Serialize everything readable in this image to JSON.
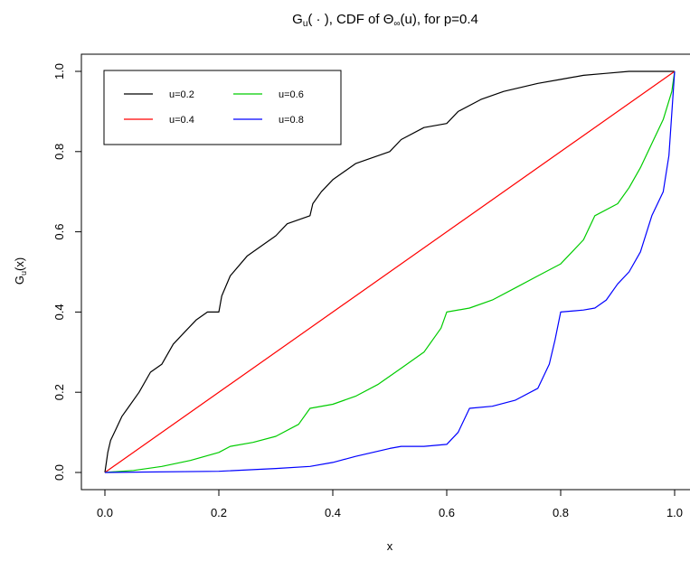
{
  "chart_data": {
    "type": "line",
    "title_parts": {
      "base": "G",
      "sub": "u",
      "rest": "( · ), CDF of Θ",
      "sub2": "∞",
      "tail": "(u), for p=0.4"
    },
    "title": "Gu( · ), CDF of Θ∞(u), for p=0.4",
    "xlabel": "x",
    "ylabel_parts": {
      "base": "G",
      "sub": "u",
      "rest": "(x)"
    },
    "ylabel": "Gu(x)",
    "xlim": [
      0,
      1
    ],
    "ylim": [
      0,
      1
    ],
    "x_ticks": [
      "0.0",
      "0.2",
      "0.4",
      "0.6",
      "0.8",
      "1.0"
    ],
    "y_ticks": [
      "0.0",
      "0.2",
      "0.4",
      "0.6",
      "0.8",
      "1.0"
    ],
    "grid": false,
    "legend_position": "top-left",
    "legend_columns": 2,
    "series": [
      {
        "name": "u=0.2",
        "color": "#000000",
        "points": [
          [
            0,
            0
          ],
          [
            0.005,
            0.05
          ],
          [
            0.01,
            0.08
          ],
          [
            0.02,
            0.11
          ],
          [
            0.03,
            0.14
          ],
          [
            0.04,
            0.16
          ],
          [
            0.06,
            0.2
          ],
          [
            0.08,
            0.25
          ],
          [
            0.1,
            0.27
          ],
          [
            0.12,
            0.32
          ],
          [
            0.14,
            0.35
          ],
          [
            0.16,
            0.38
          ],
          [
            0.18,
            0.4
          ],
          [
            0.2,
            0.4
          ],
          [
            0.205,
            0.44
          ],
          [
            0.22,
            0.49
          ],
          [
            0.25,
            0.54
          ],
          [
            0.28,
            0.57
          ],
          [
            0.3,
            0.59
          ],
          [
            0.32,
            0.62
          ],
          [
            0.36,
            0.64
          ],
          [
            0.365,
            0.67
          ],
          [
            0.38,
            0.7
          ],
          [
            0.4,
            0.73
          ],
          [
            0.44,
            0.77
          ],
          [
            0.5,
            0.8
          ],
          [
            0.52,
            0.83
          ],
          [
            0.56,
            0.86
          ],
          [
            0.6,
            0.87
          ],
          [
            0.62,
            0.9
          ],
          [
            0.66,
            0.93
          ],
          [
            0.7,
            0.95
          ],
          [
            0.76,
            0.97
          ],
          [
            0.8,
            0.98
          ],
          [
            0.84,
            0.99
          ],
          [
            0.88,
            0.995
          ],
          [
            0.92,
            1.0
          ],
          [
            1.0,
            1.0
          ]
        ]
      },
      {
        "name": "u=0.4",
        "color": "#ff0000",
        "points": [
          [
            0,
            0
          ],
          [
            1,
            1
          ]
        ]
      },
      {
        "name": "u=0.6",
        "color": "#00cc00",
        "points": [
          [
            0,
            0
          ],
          [
            0.05,
            0.005
          ],
          [
            0.1,
            0.015
          ],
          [
            0.15,
            0.03
          ],
          [
            0.2,
            0.05
          ],
          [
            0.22,
            0.065
          ],
          [
            0.26,
            0.075
          ],
          [
            0.3,
            0.09
          ],
          [
            0.34,
            0.12
          ],
          [
            0.36,
            0.16
          ],
          [
            0.4,
            0.17
          ],
          [
            0.44,
            0.19
          ],
          [
            0.48,
            0.22
          ],
          [
            0.52,
            0.26
          ],
          [
            0.56,
            0.3
          ],
          [
            0.59,
            0.36
          ],
          [
            0.6,
            0.4
          ],
          [
            0.64,
            0.41
          ],
          [
            0.68,
            0.43
          ],
          [
            0.72,
            0.46
          ],
          [
            0.76,
            0.49
          ],
          [
            0.8,
            0.52
          ],
          [
            0.84,
            0.58
          ],
          [
            0.86,
            0.64
          ],
          [
            0.9,
            0.67
          ],
          [
            0.92,
            0.71
          ],
          [
            0.94,
            0.76
          ],
          [
            0.96,
            0.82
          ],
          [
            0.98,
            0.88
          ],
          [
            0.995,
            0.95
          ],
          [
            1.0,
            1.0
          ]
        ]
      },
      {
        "name": "u=0.8",
        "color": "#0000ff",
        "points": [
          [
            0,
            0
          ],
          [
            0.2,
            0.003
          ],
          [
            0.3,
            0.01
          ],
          [
            0.36,
            0.015
          ],
          [
            0.4,
            0.025
          ],
          [
            0.44,
            0.04
          ],
          [
            0.5,
            0.06
          ],
          [
            0.52,
            0.065
          ],
          [
            0.56,
            0.065
          ],
          [
            0.6,
            0.07
          ],
          [
            0.62,
            0.1
          ],
          [
            0.64,
            0.16
          ],
          [
            0.68,
            0.165
          ],
          [
            0.72,
            0.18
          ],
          [
            0.76,
            0.21
          ],
          [
            0.78,
            0.27
          ],
          [
            0.79,
            0.33
          ],
          [
            0.8,
            0.4
          ],
          [
            0.84,
            0.405
          ],
          [
            0.86,
            0.41
          ],
          [
            0.88,
            0.43
          ],
          [
            0.9,
            0.47
          ],
          [
            0.92,
            0.5
          ],
          [
            0.94,
            0.55
          ],
          [
            0.96,
            0.64
          ],
          [
            0.98,
            0.7
          ],
          [
            0.99,
            0.79
          ],
          [
            1.0,
            1.0
          ]
        ]
      }
    ]
  }
}
